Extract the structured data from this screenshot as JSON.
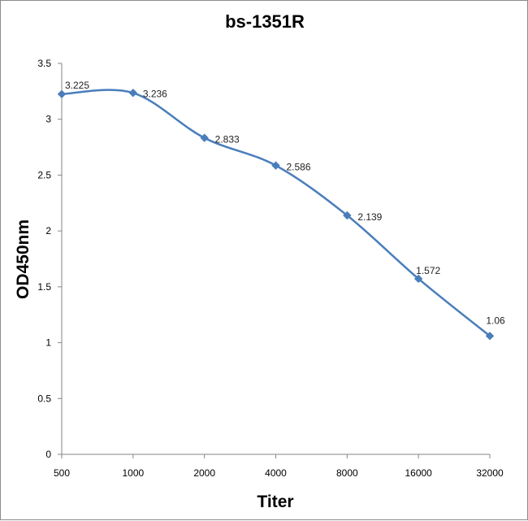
{
  "chart_data": {
    "type": "line",
    "title": "bs-1351R",
    "xlabel": "Titer",
    "ylabel": "OD450nm",
    "categories": [
      "500",
      "1000",
      "2000",
      "4000",
      "8000",
      "16000",
      "32000"
    ],
    "series": [
      {
        "values": [
          3.225,
          3.236,
          2.833,
          2.586,
          2.139,
          1.572,
          1.06
        ],
        "data_labels": [
          "3.225",
          "3.236",
          "2.833",
          "2.586",
          "2.139",
          "1.572",
          "1.06"
        ]
      }
    ],
    "ylim": [
      0,
      3.5
    ],
    "yticks": [
      "0",
      "0.5",
      "1",
      "1.5",
      "2",
      "2.5",
      "3",
      "3.5"
    ],
    "grid": false,
    "legend": "none",
    "line_style": "smoothed",
    "marker": "diamond",
    "colors": {
      "series": "#4A7EBB",
      "axis": "#868686",
      "background": "#ffffff"
    }
  }
}
